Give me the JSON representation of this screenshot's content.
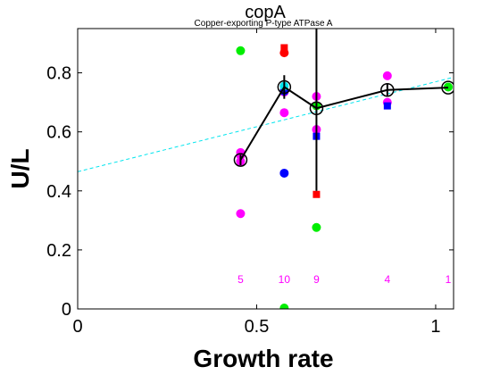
{
  "chart_data": {
    "type": "scatter",
    "title": "copA",
    "subtitle": "Copper-exporting P-type ATPase A",
    "xlabel": "Growth rate",
    "ylabel": "U/L",
    "xlim": [
      0,
      1.05
    ],
    "ylim": [
      0,
      0.95
    ],
    "xticks": [
      0,
      0.5,
      1
    ],
    "xtick_labels": [
      "0",
      "0.5",
      "1"
    ],
    "yticks": [
      0,
      0.2,
      0.4,
      0.6,
      0.8
    ],
    "ytick_labels": [
      "0",
      "0.2",
      "0.4",
      "0.6",
      "0.8"
    ],
    "grid": false,
    "colors": {
      "magenta": "#ff00ff",
      "green": "#00ee00",
      "blue": "#0000ff",
      "red": "#ff0000",
      "cyan": "#00e5ee",
      "black": "#000000"
    },
    "trend_line": {
      "x": [
        0,
        1.05
      ],
      "y": [
        0.465,
        0.785
      ],
      "color": "#00e5ee",
      "style": "dashed"
    },
    "mean_line": {
      "x": [
        0.455,
        0.577,
        0.667,
        0.865,
        1.035
      ],
      "y": [
        0.505,
        0.752,
        0.68,
        0.742,
        0.75
      ],
      "err": [
        0.018,
        0.04,
        0.28,
        0.02,
        0.0
      ]
    },
    "points": [
      {
        "x": 0.455,
        "y": 0.53,
        "shape": "circle",
        "color": "magenta"
      },
      {
        "x": 0.455,
        "y": 0.5,
        "shape": "circle",
        "color": "magenta"
      },
      {
        "x": 0.455,
        "y": 0.52,
        "shape": "circle",
        "color": "magenta"
      },
      {
        "x": 0.455,
        "y": 0.323,
        "shape": "circle",
        "color": "magenta"
      },
      {
        "x": 0.455,
        "y": 0.875,
        "shape": "circle",
        "color": "green"
      },
      {
        "x": 0.577,
        "y": 0.885,
        "shape": "square",
        "color": "red"
      },
      {
        "x": 0.577,
        "y": 0.868,
        "shape": "circle",
        "color": "red"
      },
      {
        "x": 0.577,
        "y": 0.735,
        "shape": "circle",
        "color": "magenta"
      },
      {
        "x": 0.577,
        "y": 0.665,
        "shape": "circle",
        "color": "magenta"
      },
      {
        "x": 0.577,
        "y": 0.738,
        "shape": "circle",
        "color": "blue"
      },
      {
        "x": 0.577,
        "y": 0.755,
        "shape": "circle",
        "color": "cyan"
      },
      {
        "x": 0.577,
        "y": 0.46,
        "shape": "circle",
        "color": "blue"
      },
      {
        "x": 0.577,
        "y": 0.003,
        "shape": "circle",
        "color": "green"
      },
      {
        "x": 0.667,
        "y": 0.72,
        "shape": "circle",
        "color": "magenta"
      },
      {
        "x": 0.667,
        "y": 0.688,
        "shape": "circle",
        "color": "green"
      },
      {
        "x": 0.667,
        "y": 0.608,
        "shape": "circle",
        "color": "magenta"
      },
      {
        "x": 0.667,
        "y": 0.585,
        "shape": "square",
        "color": "blue"
      },
      {
        "x": 0.667,
        "y": 0.388,
        "shape": "square",
        "color": "red"
      },
      {
        "x": 0.667,
        "y": 0.276,
        "shape": "circle",
        "color": "green"
      },
      {
        "x": 0.865,
        "y": 0.79,
        "shape": "circle",
        "color": "magenta"
      },
      {
        "x": 0.865,
        "y": 0.7,
        "shape": "circle",
        "color": "magenta"
      },
      {
        "x": 0.865,
        "y": 0.688,
        "shape": "square",
        "color": "blue"
      },
      {
        "x": 1.035,
        "y": 0.752,
        "shape": "circle",
        "color": "green"
      }
    ],
    "counts": [
      {
        "x": 0.455,
        "label": "5"
      },
      {
        "x": 0.577,
        "label": "10"
      },
      {
        "x": 0.667,
        "label": "9"
      },
      {
        "x": 0.865,
        "label": "4"
      },
      {
        "x": 1.035,
        "label": "1"
      }
    ],
    "count_y": 0.1,
    "count_color": "#ff00ff"
  }
}
